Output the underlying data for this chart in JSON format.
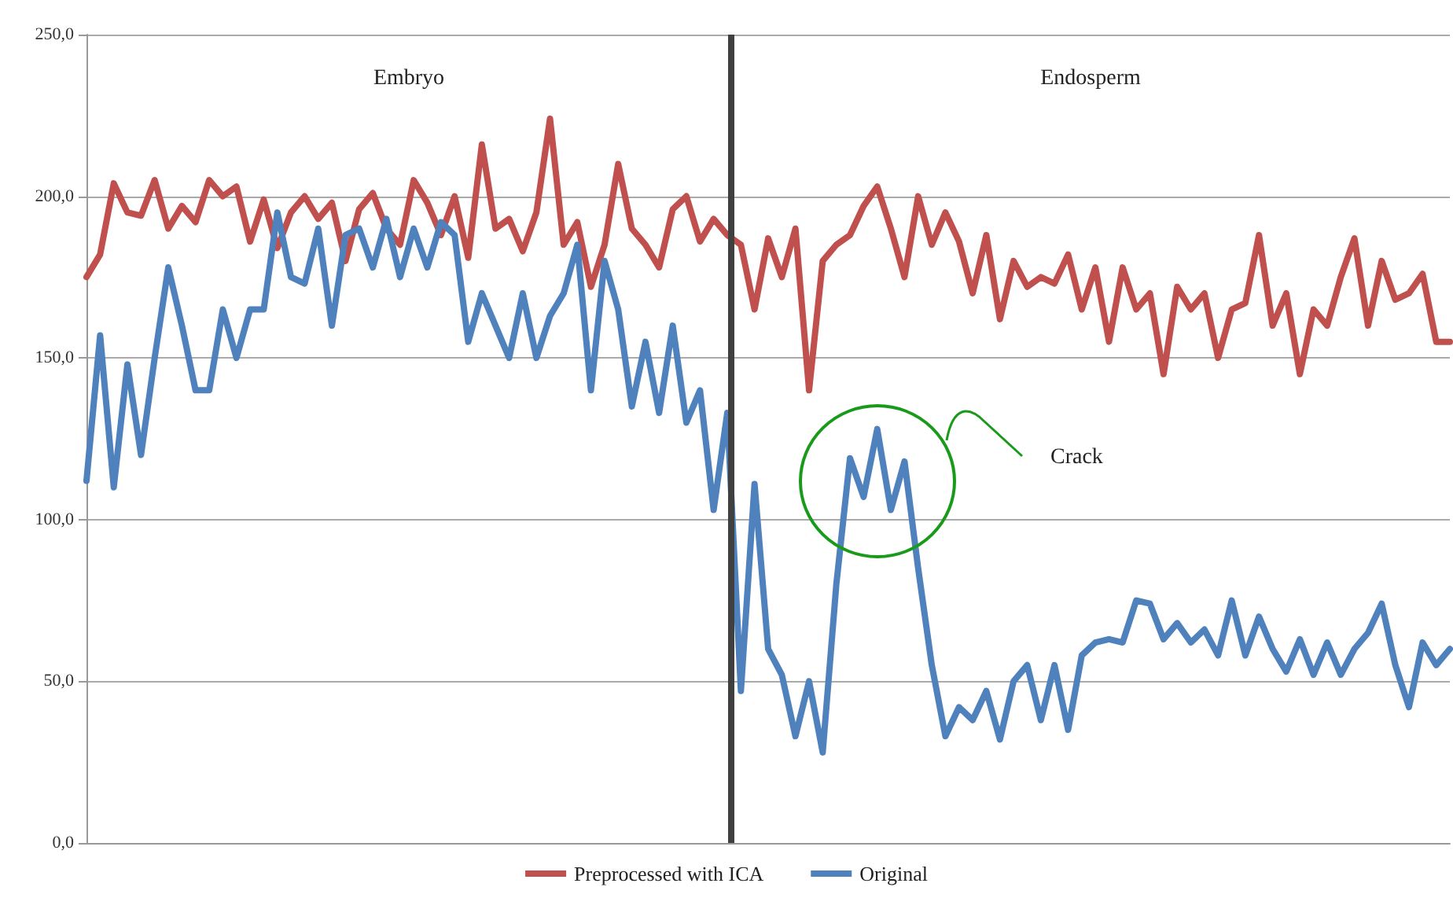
{
  "chart_data": {
    "type": "line",
    "categories": [
      null,
      null,
      null,
      null,
      null,
      null,
      null,
      null,
      null,
      null,
      null,
      null,
      null,
      null,
      null,
      null,
      null,
      null,
      null,
      null,
      null,
      null,
      null,
      null,
      null,
      null,
      null,
      null,
      null,
      null,
      null,
      null,
      null,
      null,
      null,
      null,
      null,
      null,
      null,
      null,
      null,
      null,
      null,
      null,
      null,
      null,
      null,
      null,
      null,
      null,
      null,
      null,
      null,
      null,
      null,
      null,
      null,
      null,
      null,
      null,
      null,
      null,
      null,
      null,
      null,
      null,
      null,
      null,
      null,
      null,
      null,
      null,
      null,
      null,
      null,
      null,
      null,
      null,
      null,
      null,
      null,
      null,
      null,
      null,
      null,
      null,
      null,
      null,
      null,
      null,
      null,
      null,
      null,
      null,
      null,
      null,
      null,
      null,
      null,
      null,
      null
    ],
    "series": [
      {
        "name": "Preprocessed with ICA",
        "color": "#c0504d",
        "values": [
          175,
          182,
          204,
          195,
          194,
          205,
          190,
          197,
          192,
          205,
          200,
          203,
          186,
          199,
          184,
          195,
          200,
          193,
          198,
          180,
          196,
          201,
          190,
          185,
          205,
          198,
          188,
          200,
          181,
          216,
          190,
          193,
          183,
          195,
          224,
          185,
          192,
          172,
          185,
          210,
          190,
          185,
          178,
          196,
          200,
          186,
          193,
          188,
          185,
          165,
          187,
          175,
          190,
          140,
          180,
          185,
          188,
          197,
          203,
          190,
          175,
          200,
          185,
          195,
          186,
          170,
          188,
          162,
          180,
          172,
          175,
          173,
          182,
          165,
          178,
          155,
          178,
          165,
          170,
          145,
          172,
          165,
          170,
          150,
          165,
          167,
          188,
          160,
          170,
          145,
          165,
          160,
          175,
          187,
          160,
          180,
          168,
          170,
          176,
          155,
          155
        ]
      },
      {
        "name": "Original",
        "color": "#4f81bd",
        "values": [
          112,
          157,
          110,
          148,
          120,
          150,
          178,
          160,
          140,
          140,
          165,
          150,
          165,
          165,
          195,
          175,
          173,
          190,
          160,
          188,
          190,
          178,
          193,
          175,
          190,
          178,
          192,
          188,
          155,
          170,
          160,
          150,
          170,
          150,
          163,
          170,
          185,
          140,
          180,
          165,
          135,
          155,
          133,
          160,
          130,
          140,
          103,
          133,
          47,
          111,
          60,
          52,
          33,
          50,
          28,
          80,
          119,
          107,
          128,
          103,
          118,
          85,
          55,
          33,
          42,
          38,
          47,
          32,
          50,
          55,
          38,
          55,
          35,
          58,
          62,
          63,
          62,
          75,
          74,
          63,
          68,
          62,
          66,
          58,
          75,
          58,
          70,
          60,
          53,
          63,
          52,
          62,
          52,
          60,
          65,
          74,
          55,
          42,
          62,
          55,
          60
        ]
      }
    ],
    "ylim": [
      0,
      250
    ],
    "yticks": [
      {
        "value": 0,
        "label": "0,0"
      },
      {
        "value": 50,
        "label": "50,0"
      },
      {
        "value": 100,
        "label": "100,0"
      },
      {
        "value": 150,
        "label": "150,0"
      },
      {
        "value": 200,
        "label": "200,0"
      },
      {
        "value": 250,
        "label": "250,0"
      }
    ],
    "tick_labels": "y",
    "grid": "y",
    "legend": "bottom",
    "line_style": "solid",
    "annotations": [
      "Embryo",
      "Endosperm",
      "Crack"
    ]
  }
}
